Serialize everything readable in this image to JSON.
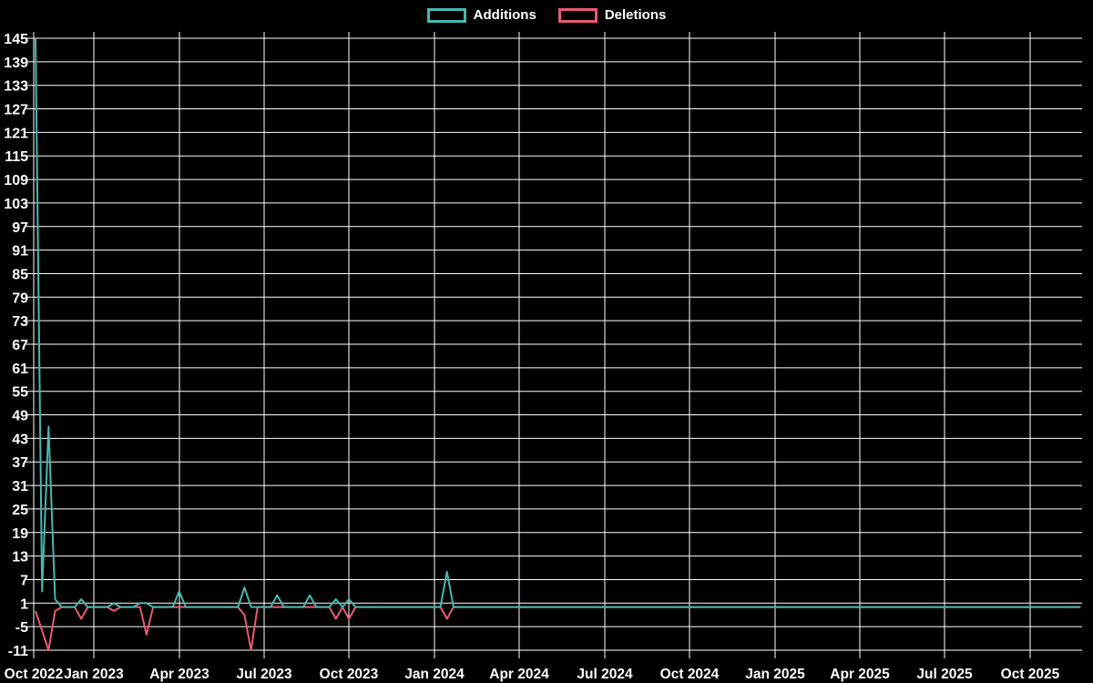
{
  "chart_data": {
    "type": "line",
    "background_color": "#000000",
    "grid_color": "#ffffff",
    "axis_text_color": "#ffffff",
    "grid": true,
    "legend_position": "top-center",
    "x_unit": "week",
    "weeks_total": 161,
    "x_tick_labels": [
      "Oct 2022",
      "Jan 2023",
      "Apr 2023",
      "Jul 2023",
      "Oct 2023",
      "Jan 2024",
      "Apr 2024",
      "Jul 2024",
      "Oct 2024",
      "Jan 2025",
      "Apr 2025",
      "Jul 2025",
      "Oct 2025"
    ],
    "y_tick_labels": [
      145,
      139,
      133,
      127,
      121,
      115,
      109,
      103,
      97,
      91,
      85,
      79,
      73,
      67,
      61,
      55,
      49,
      43,
      37,
      31,
      25,
      19,
      13,
      7,
      1,
      -5,
      -11
    ],
    "y_min": -11,
    "y_max": 145,
    "series": [
      {
        "name": "Additions",
        "color": "#46b8b1",
        "default_value": 0,
        "nonzero_points": [
          [
            0,
            145
          ],
          [
            1,
            4
          ],
          [
            2,
            46
          ],
          [
            3,
            2
          ],
          [
            7,
            2
          ],
          [
            12,
            1
          ],
          [
            16,
            1
          ],
          [
            17,
            1
          ],
          [
            22,
            4
          ],
          [
            32,
            5
          ],
          [
            37,
            3
          ],
          [
            42,
            3
          ],
          [
            46,
            2
          ],
          [
            48,
            2
          ],
          [
            63,
            9
          ]
        ]
      },
      {
        "name": "Deletions",
        "color": "#ea5a74",
        "default_value": 0,
        "nonzero_points": [
          [
            0,
            -1
          ],
          [
            1,
            -6
          ],
          [
            2,
            -11
          ],
          [
            3,
            -1
          ],
          [
            7,
            -3
          ],
          [
            12,
            -1
          ],
          [
            17,
            -7
          ],
          [
            32,
            -2
          ],
          [
            33,
            -11
          ],
          [
            46,
            -3
          ],
          [
            48,
            -3
          ],
          [
            63,
            -3
          ]
        ]
      }
    ]
  }
}
